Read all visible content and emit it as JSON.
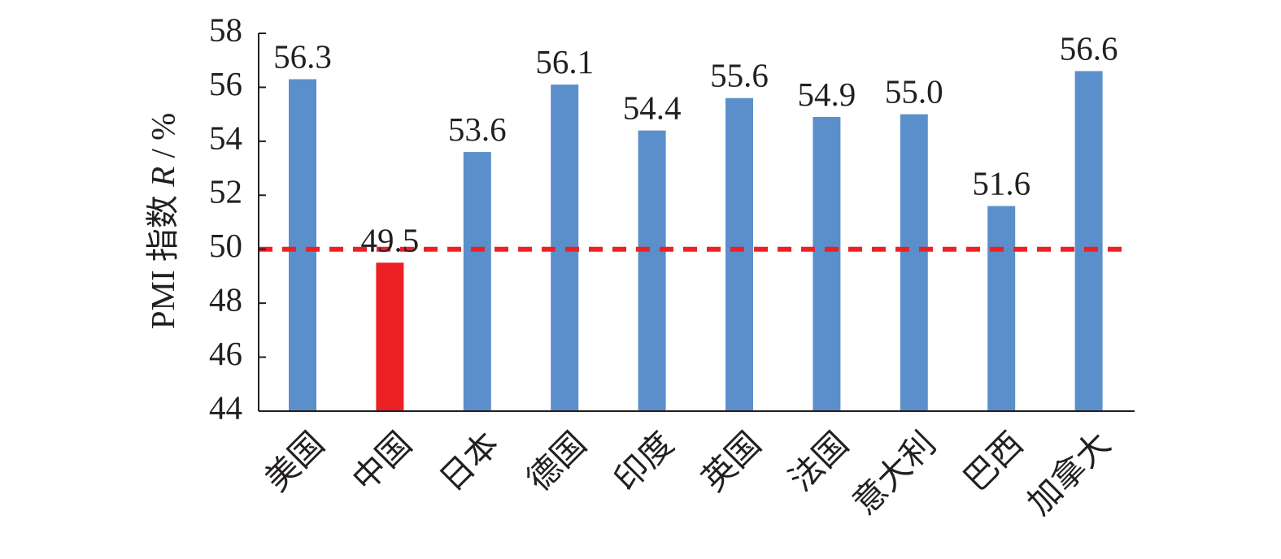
{
  "chart_data": {
    "type": "bar",
    "title": "",
    "xlabel": "",
    "ylabel": "PMI 指数",
    "ylabel_var": "R",
    "ylabel_unit": " / %",
    "categories": [
      "美国",
      "中国",
      "日本",
      "德国",
      "印度",
      "英国",
      "法国",
      "意大利",
      "巴西",
      "加拿大"
    ],
    "values": [
      56.3,
      49.5,
      53.6,
      56.1,
      54.4,
      55.6,
      54.9,
      55.0,
      51.6,
      56.6
    ],
    "data_labels": [
      "56.3",
      "49.5",
      "53.6",
      "56.1",
      "54.4",
      "55.6",
      "54.9",
      "55.0",
      "51.6",
      "56.6"
    ],
    "highlight_index": 1,
    "ylim": [
      44,
      58
    ],
    "yticks": [
      44,
      46,
      48,
      50,
      52,
      54,
      56,
      58
    ],
    "reference_line": 50,
    "grid": false,
    "legend": "none",
    "colors": {
      "bar": "#5b8fcb",
      "highlight": "#ed2024",
      "reference_line": "#ed2024",
      "axis": "#231f20",
      "text": "#231f20"
    }
  }
}
